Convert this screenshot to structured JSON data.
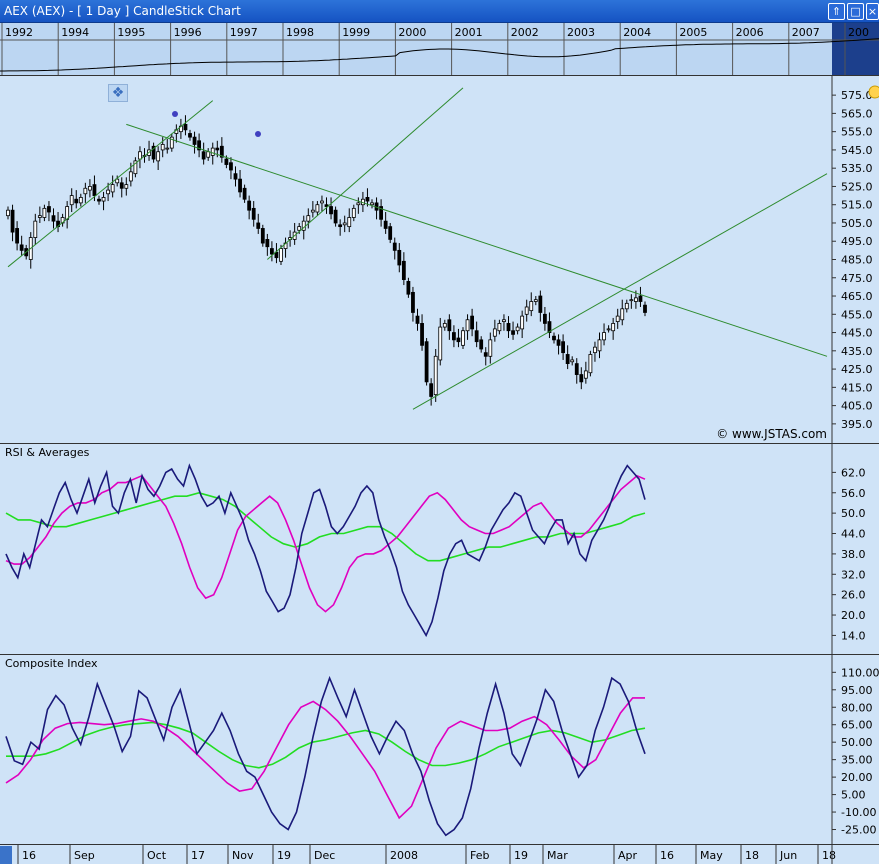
{
  "window": {
    "title": "AEX (AEX) - [ 1 Day ] CandleStick Chart",
    "buttons": [
      "scroll-up",
      "restore",
      "close"
    ]
  },
  "overview": {
    "years": [
      "1992",
      "1994",
      "1995",
      "1996",
      "1997",
      "1998",
      "1999",
      "2000",
      "2001",
      "2002",
      "2003",
      "2004",
      "2005",
      "2006",
      "2007",
      "200"
    ]
  },
  "copyright": "© www.JSTAS.com",
  "colors": {
    "background": "#cfe3f7",
    "candle": "#000000",
    "trendline": "#2e8b2e",
    "rsi": "#1a1a7a",
    "avg_fast": "#e000c0",
    "avg_slow": "#22dd22"
  },
  "chart_data": [
    {
      "name": "price",
      "type": "candlestick",
      "y_ticks": [
        "575.0",
        "565.0",
        "555.0",
        "545.0",
        "535.0",
        "525.0",
        "515.0",
        "505.0",
        "495.0",
        "485.0",
        "475.0",
        "465.0",
        "455.0",
        "445.0",
        "435.0",
        "425.0",
        "415.0",
        "405.0",
        "395.0"
      ],
      "ylim": [
        390,
        580
      ],
      "close": [
        512,
        500,
        494,
        490,
        487,
        497,
        506,
        509,
        513,
        511,
        506,
        503,
        508,
        514,
        520,
        516,
        519,
        524,
        525,
        520,
        517,
        519,
        523,
        526,
        529,
        524,
        526,
        533,
        539,
        544,
        542,
        545,
        540,
        544,
        548,
        546,
        552,
        556,
        558,
        556,
        552,
        548,
        545,
        540,
        544,
        546,
        545,
        541,
        537,
        534,
        529,
        522,
        518,
        512,
        507,
        502,
        494,
        492,
        488,
        486,
        491,
        494,
        497,
        500,
        503,
        506,
        509,
        512,
        515,
        517,
        514,
        510,
        505,
        503,
        505,
        508,
        513,
        516,
        518,
        517,
        516,
        512,
        507,
        502,
        496,
        490,
        482,
        474,
        466,
        456,
        450,
        438,
        418,
        410,
        432,
        448,
        450,
        446,
        441,
        440,
        446,
        452,
        447,
        440,
        436,
        432,
        441,
        447,
        450,
        452,
        446,
        444,
        448,
        454,
        459,
        462,
        463,
        456,
        450,
        445,
        441,
        438,
        434,
        428,
        430,
        422,
        418,
        424,
        433,
        437,
        441,
        445,
        447,
        450,
        454,
        458,
        461,
        463,
        464,
        462,
        456
      ],
      "trendlines": [
        {
          "from": [
            0,
            481
          ],
          "to": [
            45,
            572
          ]
        },
        {
          "from": [
            26,
            559
          ],
          "to": [
            180,
            432
          ]
        },
        {
          "from": [
            57,
            485
          ],
          "to": [
            100,
            579
          ]
        },
        {
          "from": [
            89,
            403
          ],
          "to": [
            180,
            532
          ]
        }
      ]
    },
    {
      "name": "RSI & Averages",
      "title": "RSI & Averages",
      "type": "line",
      "y_ticks": [
        "62.0",
        "56.0",
        "50.0",
        "44.0",
        "38.0",
        "32.0",
        "26.0",
        "20.0",
        "14.0"
      ],
      "ylim": [
        10,
        68
      ],
      "series": [
        {
          "values": [
            38,
            34,
            31,
            38,
            34,
            41,
            48,
            46,
            51,
            56,
            59,
            54,
            50,
            55,
            60,
            53,
            58,
            62,
            52,
            50,
            56,
            60,
            53,
            61,
            57,
            55,
            58,
            62,
            63,
            60,
            58,
            64,
            60,
            55,
            52,
            53,
            55,
            50,
            56,
            52,
            48,
            42,
            38,
            33,
            27,
            24,
            21,
            22,
            26,
            34,
            44,
            50,
            56,
            57,
            52,
            46,
            44,
            46,
            49,
            52,
            56,
            58,
            56,
            48,
            43,
            39,
            34,
            27,
            23,
            20,
            17,
            14,
            18,
            25,
            33,
            38,
            41,
            42,
            38,
            37,
            36,
            40,
            45,
            48,
            51,
            53,
            56,
            55,
            50,
            45,
            43,
            41,
            45,
            48,
            48,
            41,
            44,
            38,
            36,
            42,
            45,
            48,
            52,
            57,
            61,
            64,
            62,
            60,
            54
          ]
        },
        {
          "values": [
            36,
            35,
            35,
            37,
            40,
            43,
            47,
            50,
            52,
            53,
            53,
            54,
            56,
            57,
            59,
            59,
            60,
            61,
            58,
            55,
            52,
            47,
            41,
            34,
            28,
            25,
            26,
            31,
            38,
            45,
            49,
            51,
            53,
            55,
            53,
            48,
            42,
            35,
            28,
            23,
            21,
            23,
            28,
            34,
            37,
            38,
            38,
            39,
            41,
            43,
            46,
            49,
            52,
            55,
            56,
            54,
            51,
            48,
            46,
            45,
            44,
            44,
            45,
            46,
            48,
            50,
            52,
            53,
            50,
            47,
            45,
            43,
            43,
            45,
            48,
            51,
            54,
            57,
            59,
            61,
            60
          ]
        },
        {
          "values": [
            50,
            48,
            48,
            47,
            46,
            46,
            47,
            48,
            49,
            50,
            51,
            52,
            53,
            54,
            55,
            55,
            56,
            55,
            54,
            52,
            49,
            46,
            43,
            41,
            40,
            41,
            43,
            44,
            44,
            45,
            46,
            46,
            44,
            41,
            38,
            36,
            36,
            37,
            38,
            39,
            40,
            40,
            41,
            42,
            43,
            43,
            44,
            44,
            44,
            45,
            46,
            47,
            49,
            50
          ]
        }
      ]
    },
    {
      "name": "Composite Index",
      "title": "Composite Index",
      "type": "line",
      "y_ticks": [
        "110.00",
        "95.00",
        "80.00",
        "65.00",
        "50.00",
        "35.00",
        "20.00",
        "5.00",
        "-10.00",
        "-25.00"
      ],
      "ylim": [
        -34,
        118
      ],
      "series": [
        {
          "values": [
            55,
            34,
            31,
            50,
            44,
            78,
            90,
            82,
            62,
            48,
            72,
            100,
            82,
            64,
            42,
            55,
            94,
            88,
            70,
            52,
            80,
            95,
            68,
            40,
            50,
            60,
            75,
            60,
            40,
            25,
            20,
            5,
            -10,
            -20,
            -25,
            -10,
            20,
            55,
            85,
            105,
            88,
            72,
            95,
            75,
            55,
            40,
            55,
            68,
            60,
            40,
            25,
            0,
            -20,
            -30,
            -25,
            -15,
            10,
            45,
            75,
            100,
            75,
            40,
            30,
            50,
            70,
            95,
            85,
            60,
            40,
            20,
            30,
            60,
            80,
            105,
            100,
            85,
            60,
            40
          ]
        },
        {
          "values": [
            15,
            22,
            35,
            52,
            62,
            66,
            67,
            66,
            65,
            66,
            68,
            70,
            68,
            62,
            55,
            45,
            35,
            25,
            15,
            8,
            10,
            25,
            45,
            65,
            80,
            85,
            78,
            68,
            55,
            40,
            25,
            5,
            -15,
            -5,
            20,
            45,
            62,
            68,
            64,
            60,
            60,
            62,
            68,
            72,
            65,
            52,
            38,
            28,
            35,
            55,
            75,
            88,
            88
          ]
        },
        {
          "values": [
            38,
            38,
            38,
            40,
            44,
            50,
            56,
            60,
            63,
            65,
            66,
            67,
            65,
            62,
            58,
            50,
            42,
            35,
            30,
            28,
            31,
            37,
            45,
            50,
            52,
            55,
            58,
            60,
            57,
            50,
            42,
            35,
            30,
            30,
            32,
            35,
            40,
            46,
            50,
            54,
            58,
            60,
            58,
            54,
            50,
            52,
            56,
            60,
            62
          ]
        }
      ]
    }
  ],
  "x_ticks": [
    "16",
    "Sep",
    "Oct",
    "17",
    "Nov",
    "19",
    "Dec",
    "2008",
    "Feb",
    "19",
    "Mar",
    "Apr",
    "16",
    "May",
    "18",
    "Jun",
    "18"
  ]
}
